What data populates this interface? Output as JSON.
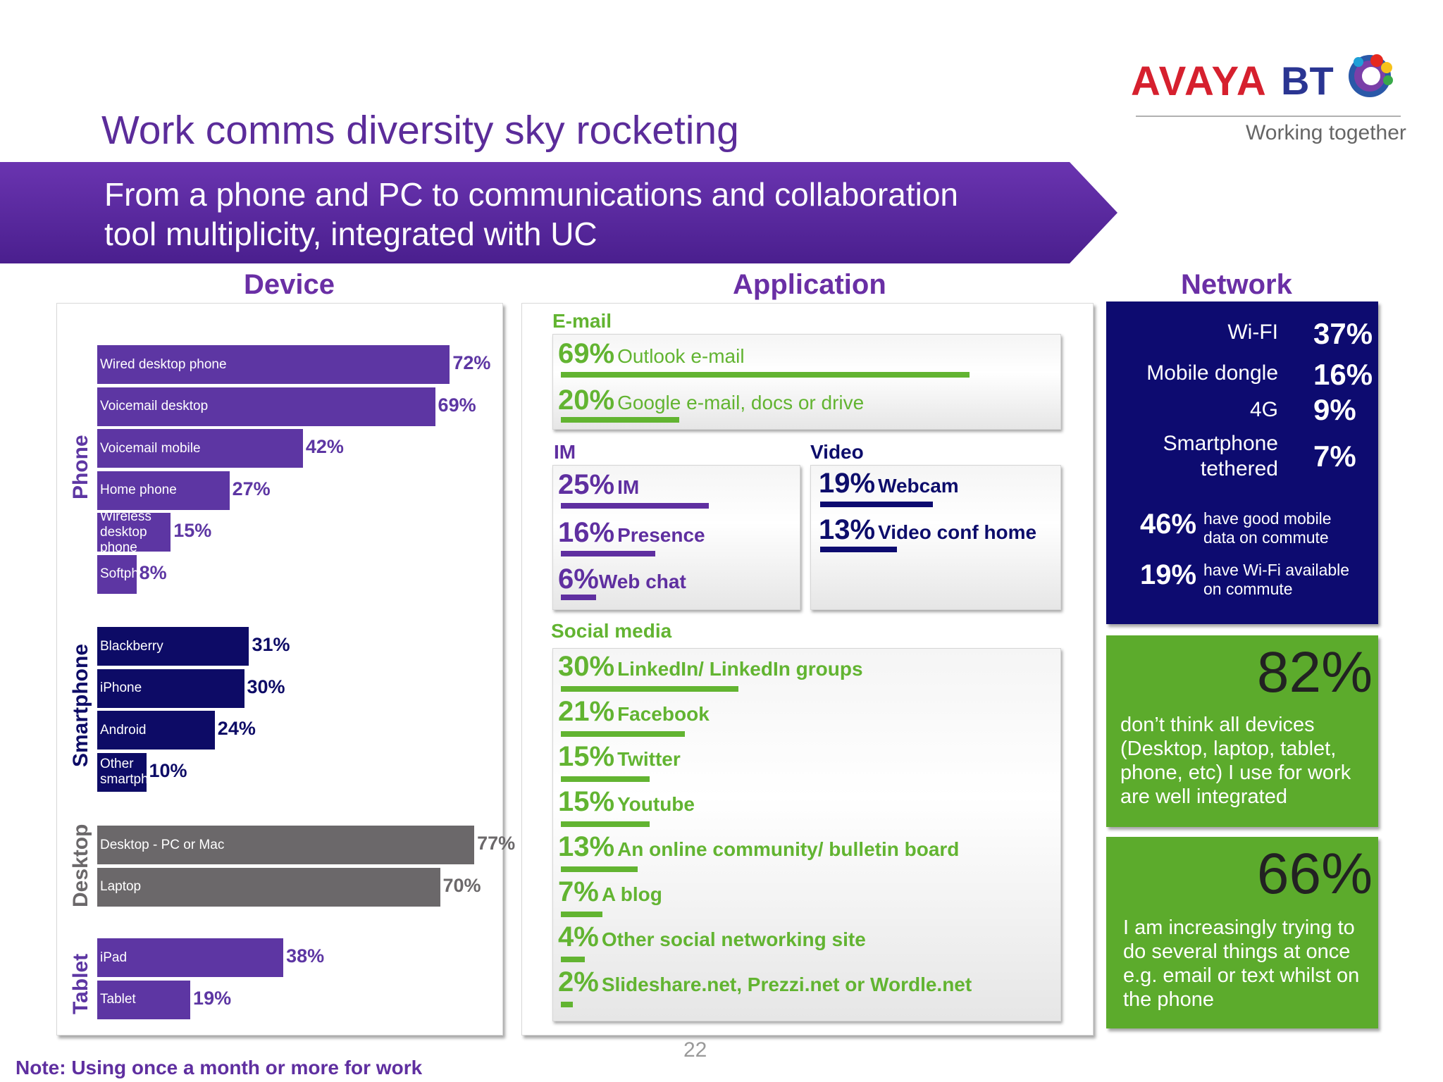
{
  "logo": {
    "avaya": "AVAYA",
    "bt": "BT",
    "tagline": "Working together"
  },
  "title": "Work comms diversity sky rocketing",
  "banner": {
    "line1": "From a phone and PC to communications and collaboration",
    "line2": "tool multiplicity, integrated with UC"
  },
  "columns": {
    "device": "Device",
    "application": "Application",
    "network": "Network"
  },
  "colors": {
    "phone": "#5d36a3",
    "smartphone": "#0d0b66",
    "desktop": "#6b686a",
    "tablet": "#5d36a3",
    "green": "#62b431",
    "purple": "#5f2fa0",
    "navy": "#0d0b70",
    "brand_purple": "#6a2fa5"
  },
  "chart_data": {
    "type": "bar",
    "orientation": "horizontal",
    "xlim": [
      0,
      100
    ],
    "groups": [
      {
        "name": "Phone",
        "items": [
          {
            "label": "Wired desktop phone",
            "value": 72,
            "value_label": "72%"
          },
          {
            "label": "Voicemail desktop",
            "value": 69,
            "value_label": "69%"
          },
          {
            "label": "Voicemail mobile",
            "value": 42,
            "value_label": "42%"
          },
          {
            "label": "Home phone",
            "value": 27,
            "value_label": "27%"
          },
          {
            "label": "Wireless desktop phone",
            "value": 15,
            "value_label": "15%"
          },
          {
            "label": "Softphone",
            "value": 8,
            "value_label": "8%"
          }
        ]
      },
      {
        "name": "Smartphone",
        "items": [
          {
            "label": "Blackberry",
            "value": 31,
            "value_label": "31%"
          },
          {
            "label": "iPhone",
            "value": 30,
            "value_label": "30%"
          },
          {
            "label": "Android",
            "value": 24,
            "value_label": "24%"
          },
          {
            "label": "Other smartphone",
            "value": 10,
            "value_label": "10%"
          }
        ]
      },
      {
        "name": "Desktop",
        "items": [
          {
            "label": "Desktop - PC or Mac",
            "value": 77,
            "value_label": "77%"
          },
          {
            "label": "Laptop",
            "value": 70,
            "value_label": "70%"
          }
        ]
      },
      {
        "name": "Tablet",
        "items": [
          {
            "label": "iPad",
            "value": 38,
            "value_label": "38%"
          },
          {
            "label": "Tablet",
            "value": 19,
            "value_label": "19%"
          }
        ]
      }
    ]
  },
  "application": {
    "email": {
      "title": "E-mail",
      "items": [
        {
          "pct": "69%",
          "label": "Outlook e-mail",
          "value": 69
        },
        {
          "pct": "20%",
          "label": "Google e-mail, docs or drive",
          "value": 20
        }
      ]
    },
    "im": {
      "title": "IM",
      "items": [
        {
          "pct": "25%",
          "label": "IM",
          "value": 25
        },
        {
          "pct": "16%",
          "label": "Presence",
          "value": 16
        },
        {
          "pct": "6%",
          "label": "Web chat",
          "value": 6
        }
      ]
    },
    "video": {
      "title": "Video",
      "items": [
        {
          "pct": "19%",
          "label": "Webcam",
          "value": 19
        },
        {
          "pct": "13%",
          "label": "Video conf home",
          "value": 13
        }
      ]
    },
    "social": {
      "title": "Social media",
      "items": [
        {
          "pct": "30%",
          "label": "LinkedIn/ LinkedIn groups",
          "value": 30
        },
        {
          "pct": "21%",
          "label": "Facebook",
          "value": 21
        },
        {
          "pct": "15%",
          "label": "Twitter",
          "value": 15
        },
        {
          "pct": "15%",
          "label": "Youtube",
          "value": 15
        },
        {
          "pct": "13%",
          "label": "An online community/ bulletin board",
          "value": 13
        },
        {
          "pct": "7%",
          "label": "A blog",
          "value": 7
        },
        {
          "pct": "4%",
          "label": "Other social networking site",
          "value": 4
        },
        {
          "pct": "2%",
          "label": "Slideshare.net, Prezzi.net or Wordle.net",
          "value": 2
        }
      ]
    }
  },
  "network": {
    "items": [
      {
        "label": "Wi-FI",
        "value": "37%"
      },
      {
        "label": "Mobile dongle",
        "value": "16%"
      },
      {
        "label": "4G",
        "value": "9%"
      },
      {
        "label": "Smartphone tethered",
        "value": "7%"
      }
    ],
    "commute": [
      {
        "pct": "46%",
        "text": "have good mobile data on commute"
      },
      {
        "pct": "19%",
        "text": "have Wi-Fi available on commute"
      }
    ]
  },
  "stats": [
    {
      "big": "82%",
      "text": "don’t think all devices (Desktop, laptop, tablet, phone, etc) I use for work are well integrated"
    },
    {
      "big": "66%",
      "text": "I am increasingly trying to do several things at once e.g. email or text whilst on the phone"
    }
  ],
  "page_number": "22",
  "note": "Note: Using once a month or more for work"
}
